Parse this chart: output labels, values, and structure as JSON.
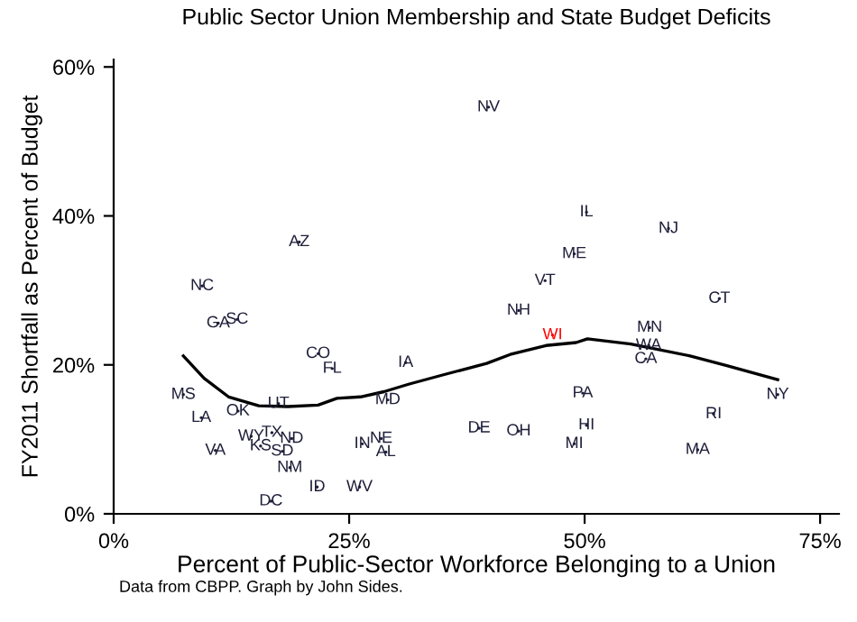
{
  "chart_data": {
    "type": "scatter",
    "title": "Public Sector Union Membership and State Budget Deficits",
    "xlabel": "Percent of Public-Sector Workforce Belonging to a Union",
    "ylabel": "FY2011 Shortfall as Percent of Budget",
    "annotations": [
      "Data from CBPP. Graph by John Sides."
    ],
    "xlim": [
      0,
      77
    ],
    "ylim": [
      0,
      61
    ],
    "xticks": [
      {
        "value": 0,
        "label": "0%"
      },
      {
        "value": 25,
        "label": "25%"
      },
      {
        "value": 50,
        "label": "50%"
      },
      {
        "value": 75,
        "label": "75%"
      }
    ],
    "yticks": [
      {
        "value": 0,
        "label": "0%"
      },
      {
        "value": 20,
        "label": "20%"
      },
      {
        "value": 40,
        "label": "40%"
      },
      {
        "value": 60,
        "label": "60%"
      }
    ],
    "grid": false,
    "series": [
      {
        "x": [
          9.4,
          11.1,
          13.1,
          19.7,
          21.7,
          23.2,
          31.0,
          7.4,
          9.3,
          13.2,
          17.5,
          29.1,
          14.6,
          16.8,
          15.6,
          18.9,
          17.9,
          10.8,
          18.7,
          26.4,
          28.4,
          28.9,
          21.6,
          26.1,
          16.7,
          39.8,
          50.2,
          58.9,
          48.9,
          45.8,
          43.0,
          46.6,
          64.3,
          56.9,
          56.8,
          56.5,
          70.5,
          49.8,
          63.7,
          38.8,
          43.0,
          50.2,
          48.9,
          62.0
        ],
        "values": [
          30.6,
          25.6,
          26.1,
          36.5,
          21.5,
          19.5,
          20.3,
          16.0,
          12.9,
          13.8,
          14.8,
          15.3,
          10.4,
          10.9,
          9.1,
          10.1,
          8.4,
          8.5,
          6.2,
          9.4,
          10.1,
          8.3,
          3.6,
          3.6,
          1.7,
          54.6,
          40.5,
          38.3,
          34.9,
          31.3,
          27.3,
          24.0,
          28.9,
          25.0,
          22.6,
          20.8,
          16.0,
          16.2,
          13.4,
          11.5,
          11.1,
          11.9,
          9.4,
          8.6
        ],
        "value_labels": [
          "NC",
          "GA",
          "SC",
          "AZ",
          "CO",
          "FL",
          "IA",
          "MS",
          "LA",
          "OK",
          "UT",
          "MD",
          "WY",
          "TX",
          "KS",
          "ND",
          "SD",
          "VA",
          "NM",
          "IN",
          "NE",
          "AL",
          "ID",
          "WV",
          "DC",
          "NV",
          "IL",
          "NJ",
          "ME",
          "VT",
          "NH",
          "WI",
          "CT",
          "MN",
          "WA",
          "CA",
          "NY",
          "PA",
          "RI",
          "DE",
          "OH",
          "HI",
          "MI",
          "MA"
        ],
        "colors": [
          "#1f1f3a",
          "#1f1f3a",
          "#1f1f3a",
          "#1f1f3a",
          "#1f1f3a",
          "#1f1f3a",
          "#1f1f3a",
          "#1f1f3a",
          "#1f1f3a",
          "#1f1f3a",
          "#1f1f3a",
          "#1f1f3a",
          "#1f1f3a",
          "#1f1f3a",
          "#1f1f3a",
          "#1f1f3a",
          "#1f1f3a",
          "#1f1f3a",
          "#1f1f3a",
          "#1f1f3a",
          "#1f1f3a",
          "#1f1f3a",
          "#1f1f3a",
          "#1f1f3a",
          "#1f1f3a",
          "#1f1f3a",
          "#1f1f3a",
          "#1f1f3a",
          "#1f1f3a",
          "#1f1f3a",
          "#1f1f3a",
          "#ff0000",
          "#1f1f3a",
          "#1f1f3a",
          "#1f1f3a",
          "#1f1f3a",
          "#1f1f3a",
          "#1f1f3a",
          "#1f1f3a",
          "#1f1f3a",
          "#1f1f3a",
          "#1f1f3a",
          "#1f1f3a",
          "#1f1f3a"
        ]
      },
      {
        "type": "line",
        "color": "#000000",
        "x": [
          7.4,
          9.6,
          12.2,
          15.4,
          18.5,
          21.7,
          23.7,
          26.2,
          28.7,
          31.3,
          35.1,
          39.6,
          42.1,
          45.9,
          49.1,
          50.3,
          54.9,
          61.2,
          65.1,
          70.5
        ],
        "values": [
          21.2,
          18.2,
          15.7,
          14.5,
          14.4,
          14.6,
          15.5,
          15.7,
          16.4,
          17.4,
          18.7,
          20.2,
          21.4,
          22.6,
          23.0,
          23.5,
          22.8,
          21.2,
          19.9,
          18.0
        ]
      }
    ]
  }
}
